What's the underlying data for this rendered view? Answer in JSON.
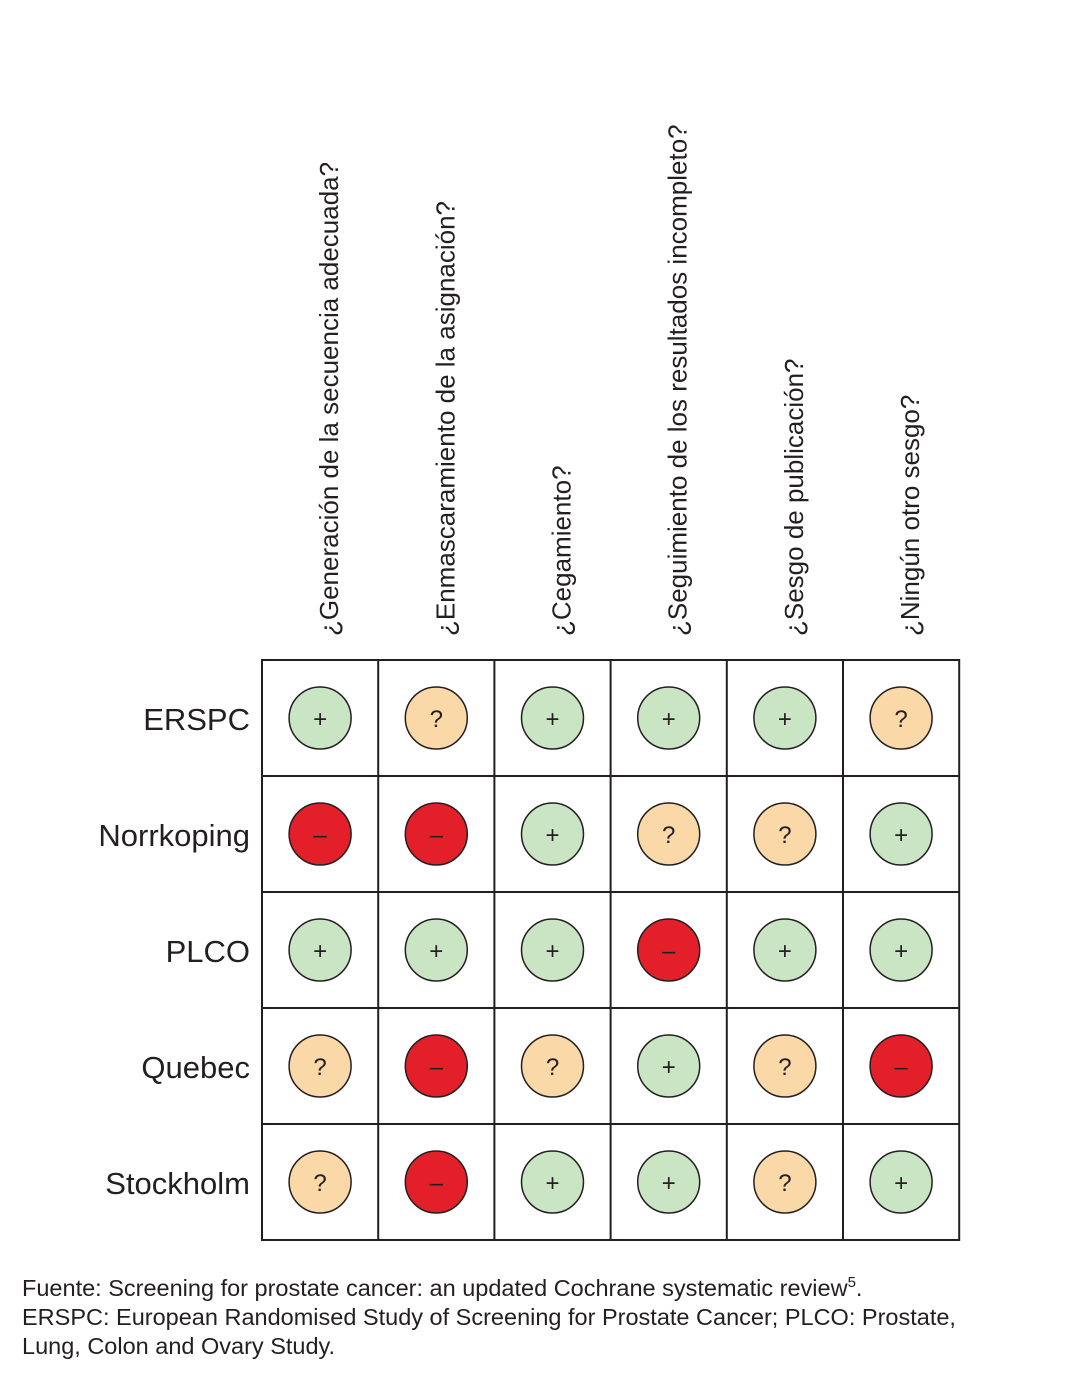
{
  "table": {
    "columns": [
      "¿Generación de la secuencia adecuada?",
      "¿Enmascaramiento de la asignación?",
      "¿Cegamiento?",
      "¿Seguimiento de los resultados incompleto?",
      "¿Sesgo de publicación?",
      "¿Ningún otro sesgo?"
    ],
    "rows": [
      {
        "label": "ERSPC",
        "cells": [
          "+",
          "?",
          "+",
          "+",
          "+",
          "?"
        ]
      },
      {
        "label": "Norrkoping",
        "cells": [
          "–",
          "–",
          "+",
          "?",
          "?",
          "+"
        ]
      },
      {
        "label": "PLCO",
        "cells": [
          "+",
          "+",
          "+",
          "–",
          "+",
          "+"
        ]
      },
      {
        "label": "Quebec",
        "cells": [
          "?",
          "–",
          "?",
          "+",
          "?",
          "–"
        ]
      },
      {
        "label": "Stockholm",
        "cells": [
          "?",
          "–",
          "+",
          "+",
          "?",
          "+"
        ]
      }
    ],
    "symbol_colors": {
      "+": "#c9e5c4",
      "?": "#fbd8a7",
      "–": "#e3202a"
    }
  },
  "footnote": {
    "source": "Fuente: Screening for prostate cancer: an updated Cochrane systematic review",
    "reference": "5",
    "source_end": ".",
    "lines": [
      "ERSPC: European Randomised Study of Screening for Prostate Cancer; PLCO: Prostate,",
      "Lung, Colon and Ovary Study."
    ]
  }
}
